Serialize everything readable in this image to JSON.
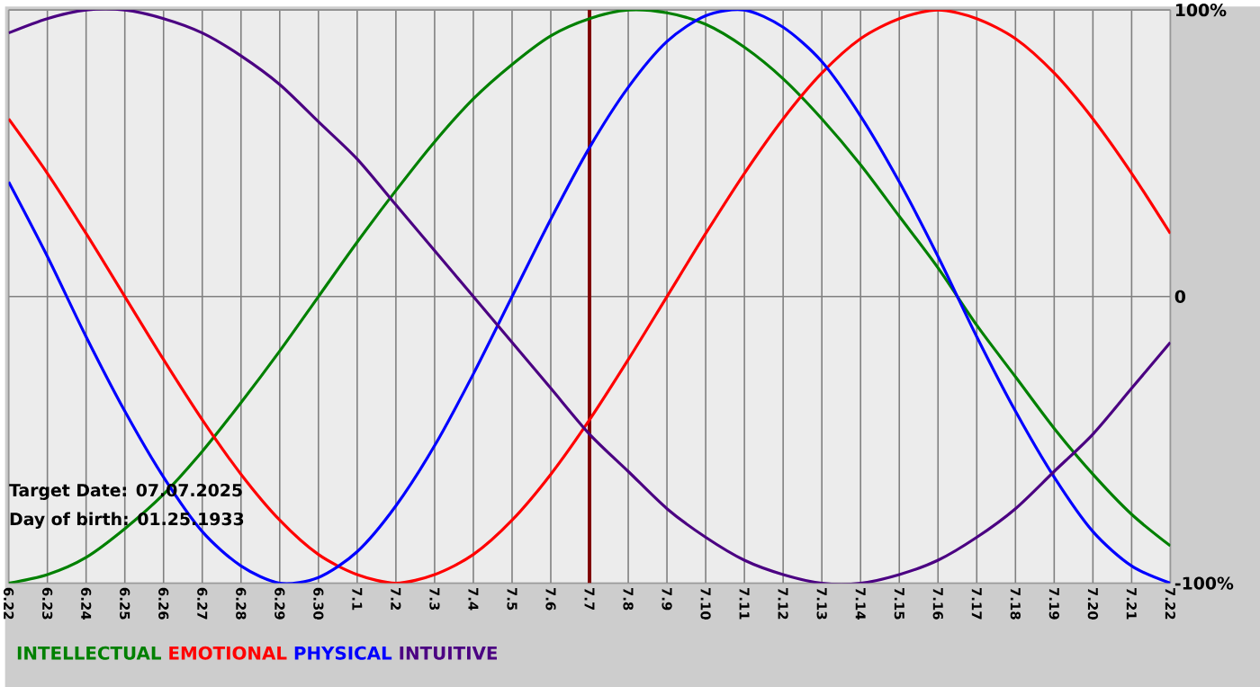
{
  "chart_data": {
    "type": "line",
    "categories": [
      "6.22",
      "6.23",
      "6.24",
      "6.25",
      "6.26",
      "6.27",
      "6.28",
      "6.29",
      "6.30",
      "7.1",
      "7.2",
      "7.3",
      "7.4",
      "7.5",
      "7.6",
      "7.7",
      "7.8",
      "7.9",
      "7.10",
      "7.11",
      "7.12",
      "7.13",
      "7.14",
      "7.15",
      "7.16",
      "7.17",
      "7.18",
      "7.19",
      "7.20",
      "7.21",
      "7.22"
    ],
    "series": [
      {
        "name": "INTELLECTUAL",
        "color": "#008000",
        "values": [
          -100,
          -97,
          -91,
          -81,
          -69,
          -54,
          -37,
          -19,
          0,
          19,
          37,
          54,
          69,
          81,
          91,
          97,
          100,
          99,
          95,
          87,
          76,
          62,
          46,
          28,
          10,
          -10,
          -28,
          -46,
          -62,
          -76,
          -87
        ]
      },
      {
        "name": "EMOTIONAL",
        "color": "#ff0000",
        "values": [
          62,
          43,
          22,
          0,
          -22,
          -43,
          -62,
          -78,
          -90,
          -97,
          -100,
          -97,
          -90,
          -78,
          -62,
          -43,
          -22,
          0,
          22,
          43,
          62,
          78,
          90,
          97,
          100,
          97,
          90,
          78,
          62,
          43,
          22
        ]
      },
      {
        "name": "PHYSICAL",
        "color": "#0000ff",
        "values": [
          40,
          14,
          -14,
          -40,
          -63,
          -82,
          -94,
          -100,
          -98,
          -89,
          -73,
          -52,
          -27,
          0,
          27,
          52,
          73,
          89,
          98,
          100,
          94,
          82,
          63,
          40,
          14,
          -14,
          -40,
          -63,
          -82,
          -94,
          -100
        ]
      },
      {
        "name": "INTUITIVE",
        "color": "#4b0082",
        "values": [
          92,
          97,
          100,
          100,
          97,
          92,
          84,
          74,
          61,
          48,
          32,
          16,
          0,
          -16,
          -32,
          -48,
          -61,
          -74,
          -84,
          -92,
          -97,
          -100,
          -100,
          -97,
          -92,
          -84,
          -74,
          -61,
          -48,
          -32,
          -16
        ]
      }
    ],
    "ylim": [
      -100,
      100
    ],
    "yticks": [
      {
        "value": 100,
        "label": "100%"
      },
      {
        "value": 0,
        "label": "0"
      },
      {
        "value": -100,
        "label": "-100%"
      }
    ],
    "grid": true,
    "legend": "bottom left",
    "ref_lines": [
      {
        "axis": "x",
        "value": "7.7",
        "color": "#800000"
      }
    ],
    "annotations": [
      "Target Date: 07.07.2025",
      "Day of birth: 01.25.1933"
    ]
  }
}
